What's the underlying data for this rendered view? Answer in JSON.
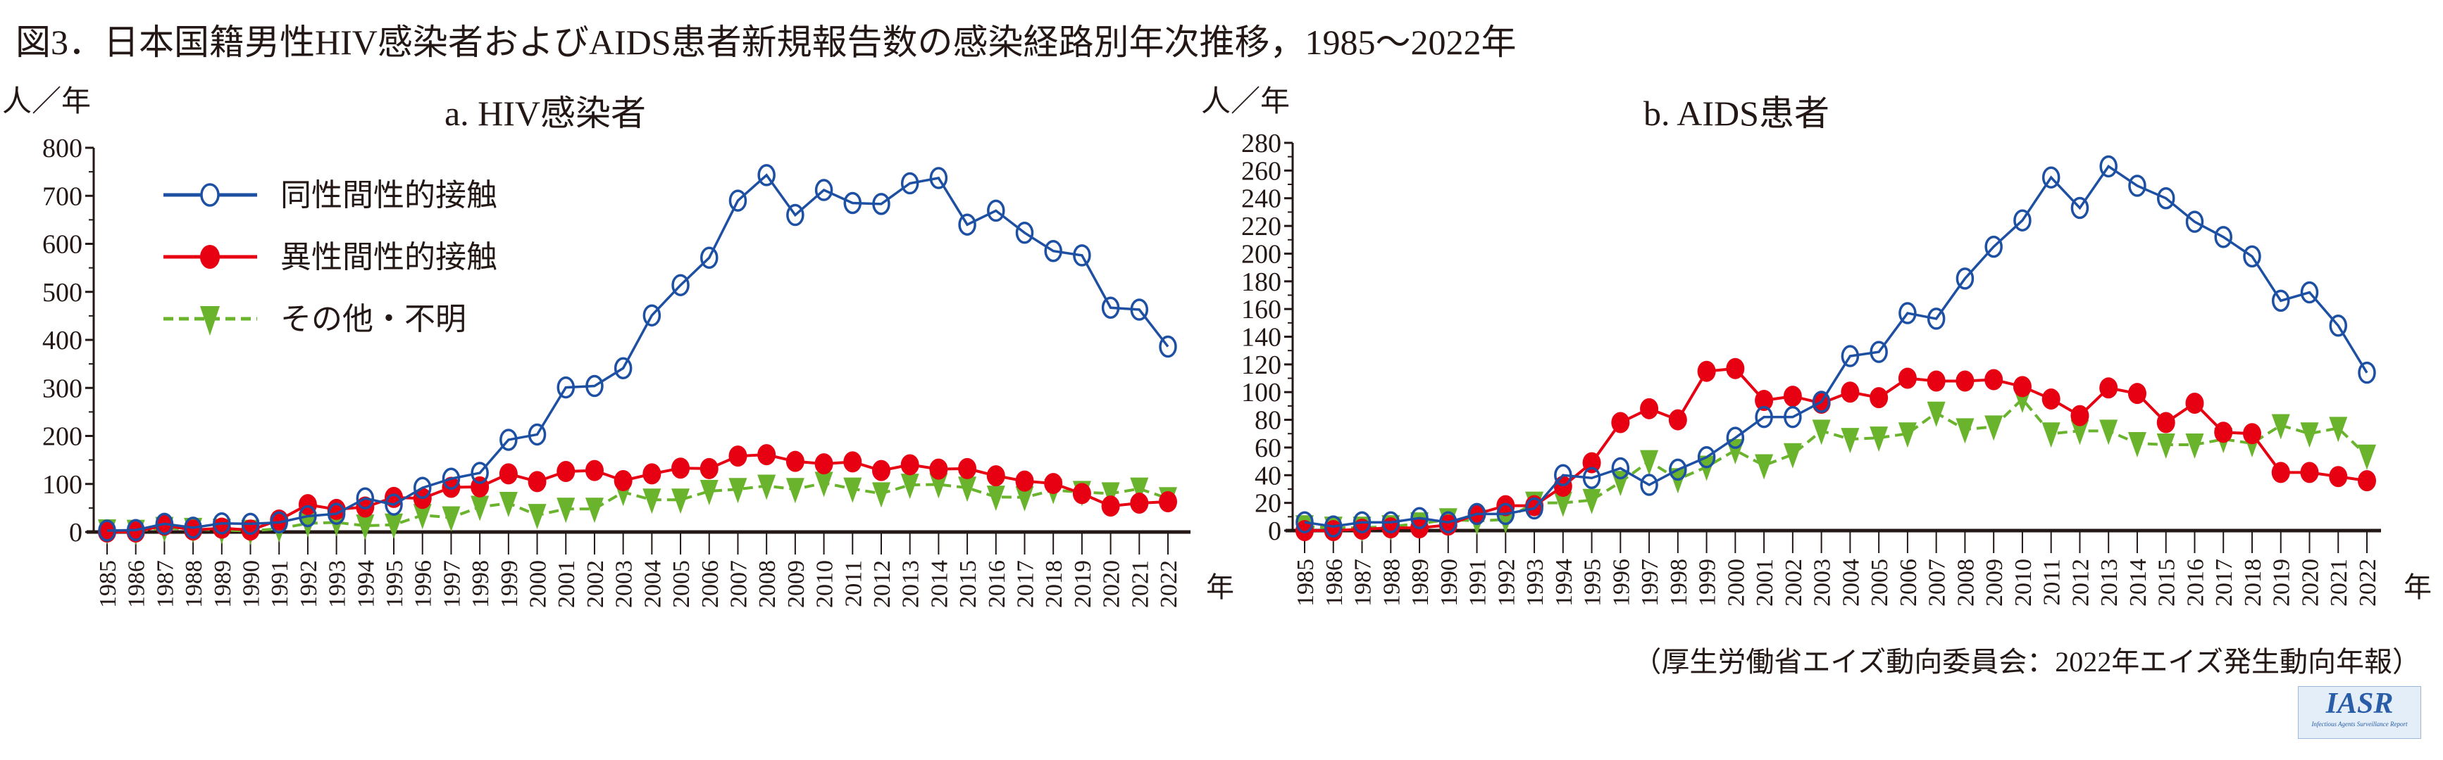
{
  "title": "図3．日本国籍男性HIV感染者およびAIDS患者新規報告数の感染経路別年次推移，1985～2022年",
  "citation": "（厚生労働省エイズ動向委員会：2022年エイズ発生動向年報）",
  "logo": {
    "main": "IASR",
    "sub": "Infectious Agents Surveillance Report"
  },
  "colors": {
    "msm": "#1d50a2",
    "hetero": "#e60012",
    "other": "#6ab42d",
    "axis": "#231815"
  },
  "chart_data": [
    {
      "type": "line",
      "title": "a. HIV感染者",
      "ylabel": "人／年",
      "xlabel": "年",
      "ylim": [
        0,
        800
      ],
      "yticks": [
        0,
        100,
        200,
        300,
        400,
        500,
        600,
        700,
        800
      ],
      "legend_position": "top-left",
      "x": [
        1985,
        1986,
        1987,
        1988,
        1989,
        1990,
        1991,
        1992,
        1993,
        1994,
        1995,
        1996,
        1997,
        1998,
        1999,
        2000,
        2001,
        2002,
        2003,
        2004,
        2005,
        2006,
        2007,
        2008,
        2009,
        2010,
        2011,
        2012,
        2013,
        2014,
        2015,
        2016,
        2017,
        2018,
        2019,
        2020,
        2021,
        2022
      ],
      "series": [
        {
          "name": "同性間性的接触",
          "key": "msm",
          "marker": "open-circle",
          "values": [
            3,
            4,
            17,
            9,
            18,
            17,
            20,
            33,
            38,
            70,
            57,
            92,
            111,
            123,
            192,
            203,
            301,
            304,
            341,
            451,
            514,
            571,
            690,
            743,
            660,
            712,
            685,
            683,
            726,
            737,
            640,
            669,
            623,
            585,
            576,
            467,
            463,
            386
          ]
        },
        {
          "name": "異性間性的接触",
          "key": "hetero",
          "marker": "filled-circle",
          "values": [
            0,
            0,
            14,
            4,
            8,
            4,
            25,
            57,
            47,
            52,
            72,
            70,
            93,
            94,
            121,
            105,
            126,
            128,
            107,
            121,
            133,
            132,
            158,
            161,
            147,
            142,
            146,
            128,
            140,
            131,
            132,
            117,
            106,
            101,
            80,
            54,
            60,
            63
          ]
        },
        {
          "name": "その他・不明",
          "key": "other",
          "marker": "down-triangle",
          "values": [
            3,
            2,
            8,
            6,
            4,
            2,
            7,
            18,
            20,
            13,
            15,
            35,
            30,
            52,
            60,
            35,
            48,
            48,
            83,
            67,
            67,
            85,
            89,
            96,
            89,
            102,
            90,
            80,
            98,
            99,
            92,
            73,
            72,
            87,
            83,
            80,
            90,
            70
          ]
        }
      ]
    },
    {
      "type": "line",
      "title": "b. AIDS患者",
      "ylabel": "人／年",
      "xlabel": "年",
      "ylim": [
        0,
        280
      ],
      "yticks": [
        0,
        20,
        40,
        60,
        80,
        100,
        120,
        140,
        160,
        180,
        200,
        220,
        240,
        260,
        280
      ],
      "x": [
        1985,
        1986,
        1987,
        1988,
        1989,
        1990,
        1991,
        1992,
        1993,
        1994,
        1995,
        1996,
        1997,
        1998,
        1999,
        2000,
        2001,
        2002,
        2003,
        2004,
        2005,
        2006,
        2007,
        2008,
        2009,
        2010,
        2011,
        2012,
        2013,
        2014,
        2015,
        2016,
        2017,
        2018,
        2019,
        2020,
        2021,
        2022
      ],
      "series": [
        {
          "name": "同性間性的接触",
          "key": "msm",
          "marker": "open-circle",
          "values": [
            6,
            3,
            6,
            6,
            9,
            6,
            12,
            12,
            16,
            40,
            38,
            45,
            33,
            44,
            53,
            67,
            82,
            82,
            93,
            126,
            129,
            157,
            153,
            182,
            205,
            224,
            255,
            233,
            263,
            249,
            240,
            223,
            212,
            198,
            166,
            172,
            148,
            114
          ]
        },
        {
          "name": "異性間性的接触",
          "key": "hetero",
          "marker": "filled-circle",
          "values": [
            0,
            0,
            1,
            2,
            2,
            4,
            12,
            18,
            18,
            32,
            49,
            78,
            88,
            80,
            115,
            117,
            94,
            97,
            92,
            100,
            96,
            110,
            108,
            108,
            109,
            104,
            95,
            83,
            103,
            99,
            78,
            92,
            71,
            70,
            42,
            42,
            39,
            36
          ]
        },
        {
          "name": "その他・不明",
          "key": "other",
          "marker": "down-triangle",
          "values": [
            3,
            2,
            2,
            3,
            5,
            8,
            7,
            8,
            20,
            20,
            22,
            35,
            50,
            37,
            46,
            58,
            47,
            55,
            72,
            66,
            67,
            70,
            85,
            73,
            75,
            95,
            70,
            72,
            72,
            63,
            62,
            62,
            66,
            63,
            76,
            70,
            74,
            54
          ]
        }
      ]
    }
  ]
}
